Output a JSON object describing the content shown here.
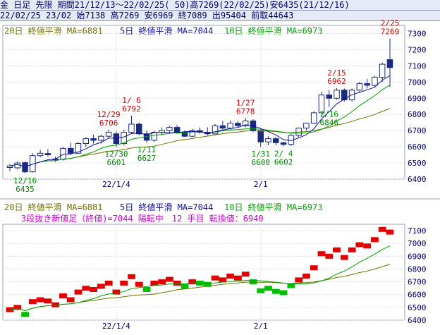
{
  "header": {
    "line1": "金 日足 先限 期間21/12/13～22/02/25( 50)高7269(22/02/25)安6435(21/12/16)",
    "line2": "22/02/25 23/02 始7138 高7269 安6969 終7089 出95404 前取44643"
  },
  "legend": {
    "ma20": "20日 終値平滑 MA=6881",
    "ma5": "5日 終値平滑 MA=7044",
    "ma10": "10日 終値平滑 MA=6973",
    "threeline": "3段抜き新値足（終値)=7044 陽転中　12 手目 転換値：6940"
  },
  "colors": {
    "ma20": "#707000",
    "ma5": "#1010a0",
    "ma10": "#00a000",
    "candle_up": "#ffffff",
    "candle_down": "#1a2a80",
    "label_high": "#cc0000",
    "label_low": "#008800",
    "brick_up": "#e00000",
    "brick_down": "#00c000"
  },
  "chart_data": [
    {
      "type": "candlestick",
      "title": "",
      "xlabel": "",
      "ylabel": "",
      "ylim": [
        6400,
        7350
      ],
      "y_ticks": [
        7300,
        7200,
        7100,
        7000,
        6900,
        6800,
        6700,
        6600,
        6500,
        6400
      ],
      "x_tick_labels": [
        {
          "index": 14,
          "label": "22/1/4"
        },
        {
          "index": 33,
          "label": "2/1"
        }
      ],
      "candles": [
        {
          "o": 6472,
          "h": 6492,
          "l": 6450,
          "c": 6482
        },
        {
          "o": 6470,
          "h": 6510,
          "l": 6460,
          "c": 6500
        },
        {
          "o": 6502,
          "h": 6510,
          "l": 6435,
          "c": 6445
        },
        {
          "o": 6445,
          "h": 6560,
          "l": 6440,
          "c": 6545
        },
        {
          "o": 6545,
          "h": 6580,
          "l": 6535,
          "c": 6560
        },
        {
          "o": 6558,
          "h": 6585,
          "l": 6540,
          "c": 6550
        },
        {
          "o": 6525,
          "h": 6540,
          "l": 6505,
          "c": 6520
        },
        {
          "o": 6522,
          "h": 6600,
          "l": 6515,
          "c": 6590
        },
        {
          "o": 6590,
          "h": 6625,
          "l": 6550,
          "c": 6560
        },
        {
          "o": 6560,
          "h": 6630,
          "l": 6555,
          "c": 6620
        },
        {
          "o": 6620,
          "h": 6660,
          "l": 6600,
          "c": 6650
        },
        {
          "o": 6650,
          "h": 6675,
          "l": 6620,
          "c": 6640
        },
        {
          "o": 6640,
          "h": 6675,
          "l": 6620,
          "c": 6665
        },
        {
          "o": 6665,
          "h": 6706,
          "l": 6655,
          "c": 6690
        },
        {
          "o": 6680,
          "h": 6695,
          "l": 6601,
          "c": 6620
        },
        {
          "o": 6620,
          "h": 6705,
          "l": 6610,
          "c": 6690
        },
        {
          "o": 6690,
          "h": 6792,
          "l": 6680,
          "c": 6740
        },
        {
          "o": 6740,
          "h": 6750,
          "l": 6670,
          "c": 6680
        },
        {
          "o": 6680,
          "h": 6700,
          "l": 6627,
          "c": 6640
        },
        {
          "o": 6640,
          "h": 6700,
          "l": 6630,
          "c": 6690
        },
        {
          "o": 6690,
          "h": 6720,
          "l": 6670,
          "c": 6700
        },
        {
          "o": 6700,
          "h": 6730,
          "l": 6680,
          "c": 6720
        },
        {
          "o": 6720,
          "h": 6735,
          "l": 6680,
          "c": 6690
        },
        {
          "o": 6690,
          "h": 6700,
          "l": 6660,
          "c": 6665
        },
        {
          "o": 6665,
          "h": 6710,
          "l": 6660,
          "c": 6700
        },
        {
          "o": 6700,
          "h": 6720,
          "l": 6680,
          "c": 6690
        },
        {
          "o": 6690,
          "h": 6720,
          "l": 6670,
          "c": 6680
        },
        {
          "o": 6680,
          "h": 6740,
          "l": 6675,
          "c": 6730
        },
        {
          "o": 6730,
          "h": 6760,
          "l": 6700,
          "c": 6715
        },
        {
          "o": 6715,
          "h": 6760,
          "l": 6705,
          "c": 6745
        },
        {
          "o": 6745,
          "h": 6760,
          "l": 6720,
          "c": 6730
        },
        {
          "o": 6730,
          "h": 6778,
          "l": 6720,
          "c": 6760
        },
        {
          "o": 6760,
          "h": 6770,
          "l": 6690,
          "c": 6700
        },
        {
          "o": 6700,
          "h": 6705,
          "l": 6600,
          "c": 6630
        },
        {
          "o": 6630,
          "h": 6665,
          "l": 6610,
          "c": 6650
        },
        {
          "o": 6650,
          "h": 6660,
          "l": 6610,
          "c": 6625
        },
        {
          "o": 6625,
          "h": 6630,
          "l": 6602,
          "c": 6615
        },
        {
          "o": 6615,
          "h": 6680,
          "l": 6605,
          "c": 6670
        },
        {
          "o": 6670,
          "h": 6720,
          "l": 6660,
          "c": 6715
        },
        {
          "o": 6715,
          "h": 6750,
          "l": 6700,
          "c": 6745
        },
        {
          "o": 6745,
          "h": 6820,
          "l": 6740,
          "c": 6810
        },
        {
          "o": 6810,
          "h": 6940,
          "l": 6800,
          "c": 6920
        },
        {
          "o": 6920,
          "h": 6950,
          "l": 6846,
          "c": 6900
        },
        {
          "o": 6900,
          "h": 6962,
          "l": 6890,
          "c": 6950
        },
        {
          "o": 6950,
          "h": 6960,
          "l": 6880,
          "c": 6890
        },
        {
          "o": 6890,
          "h": 6960,
          "l": 6880,
          "c": 6950
        },
        {
          "o": 6950,
          "h": 7000,
          "l": 6940,
          "c": 6990
        },
        {
          "o": 6990,
          "h": 7020,
          "l": 6960,
          "c": 6980
        },
        {
          "o": 6980,
          "h": 7040,
          "l": 6970,
          "c": 7030
        },
        {
          "o": 7030,
          "h": 7120,
          "l": 7000,
          "c": 7110
        },
        {
          "o": 7138,
          "h": 7269,
          "l": 6969,
          "c": 7089
        }
      ],
      "annotations": [
        {
          "index": 2,
          "text": "12/16\n6435",
          "kind": "low"
        },
        {
          "index": 13,
          "text": "12/29\n6706",
          "kind": "high"
        },
        {
          "index": 14,
          "text": "12/30\n6601",
          "kind": "low"
        },
        {
          "index": 16,
          "text": "1/ 6\n6792",
          "kind": "high"
        },
        {
          "index": 18,
          "text": "1/11\n6627",
          "kind": "low"
        },
        {
          "index": 31,
          "text": "1/27\n6778",
          "kind": "high"
        },
        {
          "index": 33,
          "text": "1/31\n6600",
          "kind": "low"
        },
        {
          "index": 36,
          "text": "2/ 4\n6602",
          "kind": "low"
        },
        {
          "index": 42,
          "text": "2/16\n6846",
          "kind": "low"
        },
        {
          "index": 43,
          "text": "2/15\n6962",
          "kind": "high"
        },
        {
          "index": 50,
          "text": "2/25\n7269",
          "kind": "high"
        }
      ]
    },
    {
      "type": "three-line-break",
      "title": "",
      "xlabel": "",
      "ylabel": "",
      "ylim": [
        6400,
        7150
      ],
      "y_ticks": [
        7100,
        7000,
        6900,
        6800,
        6700,
        6600,
        6500,
        6400
      ],
      "x_tick_labels": [
        {
          "index": 14,
          "label": "22/1/4"
        },
        {
          "index": 33,
          "label": "2/1"
        }
      ]
    }
  ]
}
